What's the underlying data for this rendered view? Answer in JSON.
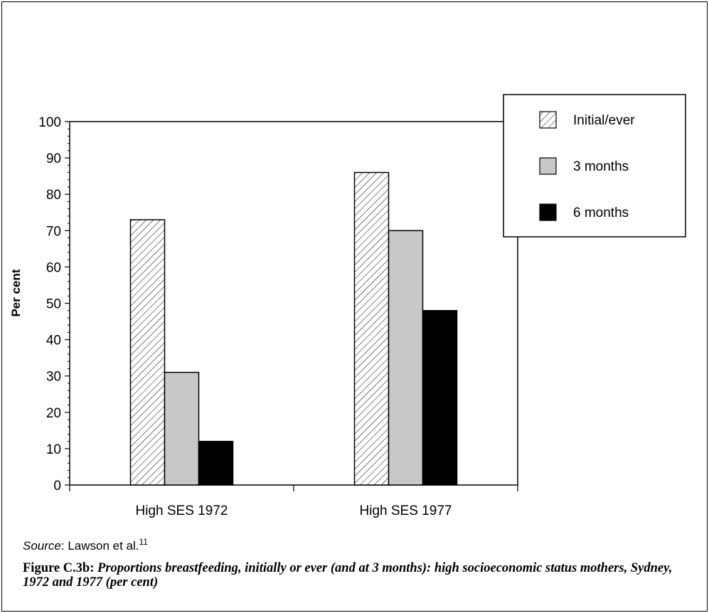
{
  "chart_data": {
    "type": "bar",
    "categories": [
      "High SES 1972",
      "High SES 1977"
    ],
    "series": [
      {
        "name": "Initial/ever",
        "values": [
          73,
          86
        ],
        "pattern": "hatched"
      },
      {
        "name": "3 months",
        "values": [
          31,
          70
        ],
        "color": "#c8c8c8"
      },
      {
        "name": "6 months",
        "values": [
          12,
          48
        ],
        "color": "#000000"
      }
    ],
    "ylabel": "Per cent",
    "ylim": [
      0,
      100
    ],
    "yticks": [
      0,
      10,
      20,
      30,
      40,
      50,
      60,
      70,
      80,
      90,
      100
    ],
    "legend_position": "top-right",
    "grid": false
  },
  "source": {
    "label": "Source",
    "text": ": Lawson et al.",
    "ref": "11"
  },
  "caption": {
    "figure_id": "Figure C.3b: ",
    "title": "Proportions breastfeeding, initially or ever (and at 3 months): high socioeconomic status mothers, Sydney, 1972 and 1977 (per cent)"
  }
}
